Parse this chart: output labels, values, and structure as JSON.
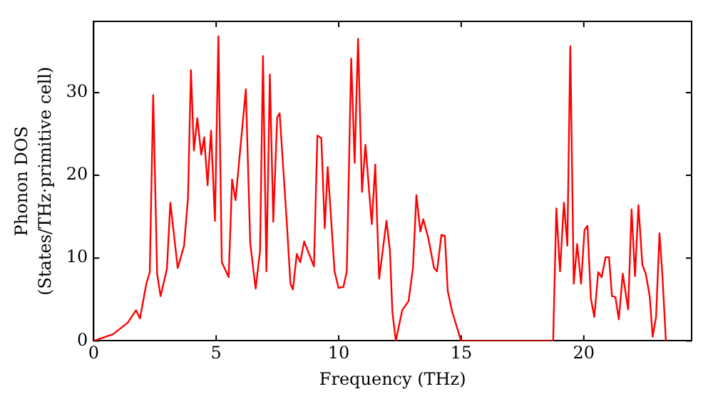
{
  "chart_data": {
    "type": "line",
    "xlabel": "Frequency (THz)",
    "ylabel": "Phonon DOS\n(States/THz·primitive cell)",
    "xlim": [
      0,
      24.4
    ],
    "ylim": [
      0,
      38.6
    ],
    "xticks": [
      0,
      5,
      10,
      15,
      20
    ],
    "yticks": [
      0,
      10,
      20,
      30
    ],
    "grid": false,
    "legend": false,
    "marker": "none",
    "line_style": "solid",
    "series": [
      {
        "color": "#ff0000",
        "x": [
          0,
          0.79,
          1.39,
          1.73,
          1.89,
          2.15,
          2.29,
          2.43,
          2.59,
          2.73,
          2.99,
          3.13,
          3.43,
          3.69,
          3.85,
          3.97,
          4.09,
          4.23,
          4.39,
          4.51,
          4.65,
          4.79,
          4.95,
          5.09,
          5.23,
          5.51,
          5.65,
          5.79,
          6.21,
          6.39,
          6.61,
          6.79,
          6.91,
          7.05,
          7.19,
          7.33,
          7.49,
          7.59,
          7.89,
          8.03,
          8.13,
          8.29,
          8.43,
          8.59,
          8.99,
          9.13,
          9.29,
          9.43,
          9.55,
          9.83,
          9.99,
          10.19,
          10.33,
          10.51,
          10.65,
          10.79,
          10.95,
          11.09,
          11.35,
          11.49,
          11.65,
          11.95,
          12.09,
          12.19,
          12.33,
          12.59,
          12.85,
          13.03,
          13.17,
          13.33,
          13.45,
          13.65,
          13.89,
          14.01,
          14.19,
          14.33,
          14.45,
          14.63,
          14.83,
          14.99,
          18.75,
          18.88,
          19.03,
          19.19,
          19.33,
          19.45,
          19.59,
          19.73,
          19.89,
          20.03,
          20.15,
          20.29,
          20.43,
          20.59,
          20.73,
          20.89,
          21.03,
          21.15,
          21.29,
          21.43,
          21.59,
          21.81,
          21.95,
          22.09,
          22.23,
          22.39,
          22.53,
          22.69,
          22.81,
          22.95,
          23.09,
          23.21,
          23.35
        ],
        "values": [
          0,
          0.8,
          2.2,
          3.7,
          2.7,
          6.9,
          8.3,
          29.7,
          8.1,
          5.4,
          8.7,
          16.7,
          8.8,
          11.5,
          17.3,
          32.7,
          23,
          26.9,
          22.5,
          24.6,
          18.8,
          25.4,
          14.5,
          36.8,
          9.5,
          7.7,
          19.5,
          17,
          30.4,
          11.8,
          6.3,
          10.9,
          34.4,
          8.4,
          32.2,
          14.4,
          27,
          27.5,
          13.9,
          6.9,
          6.2,
          10.5,
          9.5,
          12,
          9,
          24.8,
          24.5,
          13.6,
          21,
          8.4,
          6.4,
          6.5,
          8.4,
          34.1,
          21.5,
          36.5,
          18,
          23.7,
          14.1,
          21.3,
          7.5,
          14.5,
          10.9,
          3.5,
          0,
          3.7,
          4.8,
          8.8,
          17.6,
          13.2,
          14.7,
          12.5,
          8.8,
          8.4,
          12.8,
          12.7,
          6,
          3.5,
          1.6,
          0,
          0,
          16,
          8.4,
          16.7,
          11.5,
          35.6,
          6.9,
          11.7,
          6.9,
          13.4,
          13.9,
          5.1,
          2.9,
          8.3,
          7.7,
          10.1,
          10.1,
          5.4,
          5.3,
          2.6,
          8.1,
          3.8,
          15.9,
          7.8,
          16.4,
          9.2,
          8.1,
          5.4,
          0.5,
          2.9,
          13,
          7.8,
          0
        ]
      }
    ]
  }
}
